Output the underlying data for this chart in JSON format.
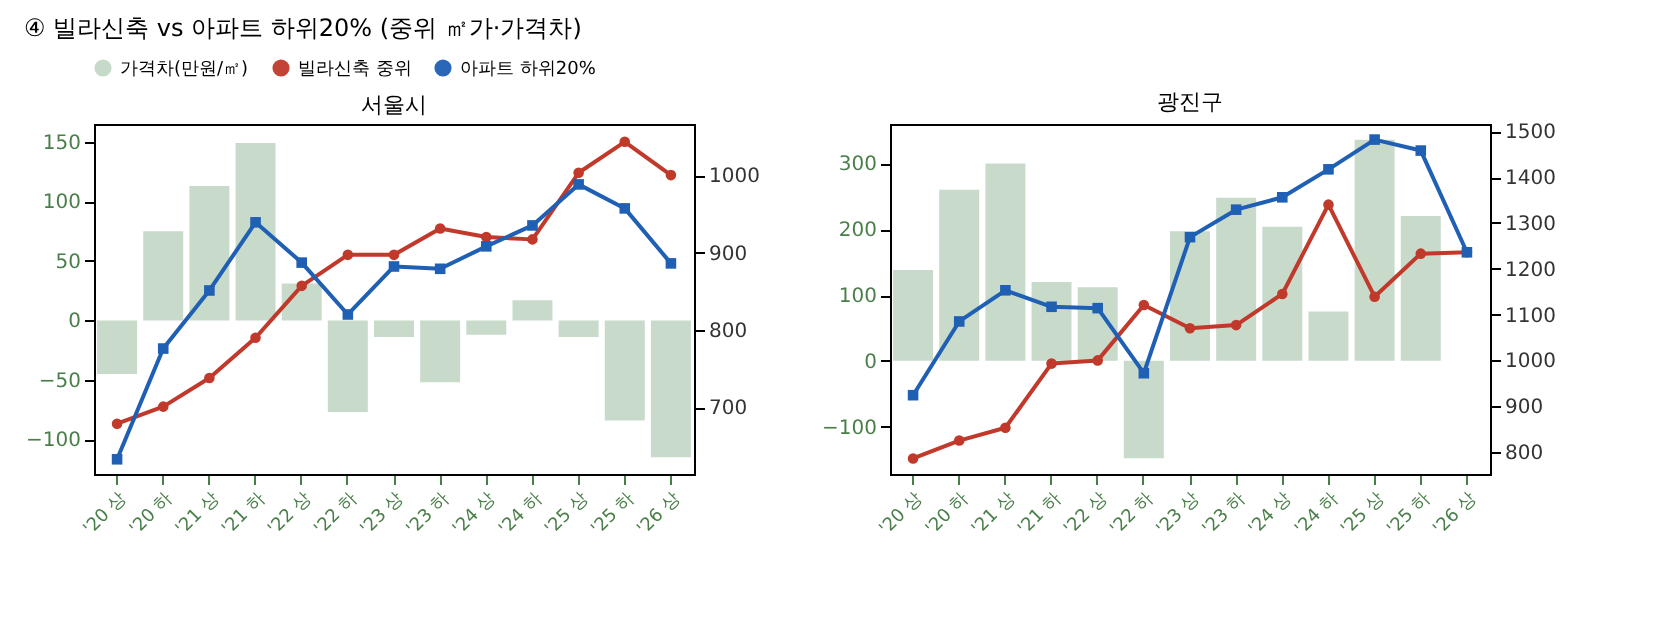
{
  "chart_data": [
    {
      "type": "bar",
      "title": "서울시",
      "annotations": [
        "④ 빌라신축 vs 아파트 하위20% (중위 ㎡가·가격차)"
      ],
      "categories": [
        "'20 상",
        "'20 하",
        "'21 상",
        "'21 하",
        "'22 상",
        "'22 하",
        "'23 상",
        "'23 하",
        "'24 상",
        "'24 하",
        "'25 상",
        "'25 하",
        "'26 상"
      ],
      "ylim": [
        -129,
        165
      ],
      "yticks": [
        -100,
        -50,
        0,
        50,
        100,
        150
      ],
      "y2lim": [
        614,
        1066
      ],
      "y2ticks": [
        700,
        800,
        900,
        1000
      ],
      "legend": "top",
      "grid": false,
      "series": [
        {
          "name": "가격차(만원/㎡)",
          "color": "#c5d9c8",
          "values": [
            -45,
            75,
            113,
            149,
            31,
            -77,
            -14,
            -52,
            -12,
            17,
            -14,
            -84,
            -115
          ]
        },
        {
          "name": "빌라신축 중위",
          "type": "line",
          "axis": "y2",
          "marker": "circle",
          "color": "#c0392b",
          "values": [
            679,
            701,
            738,
            790,
            857,
            897,
            897,
            931,
            920,
            917,
            1003,
            1043,
            1000
          ]
        },
        {
          "name": "아파트 하위20%",
          "type": "line",
          "axis": "y2",
          "marker": "square",
          "color": "#1f5fb4",
          "values": [
            633,
            776,
            851,
            939,
            887,
            820,
            882,
            879,
            908,
            935,
            988,
            957,
            886
          ]
        }
      ]
    },
    {
      "type": "bar",
      "title": "광진구",
      "categories": [
        "'20 상",
        "'20 하",
        "'21 상",
        "'21 하",
        "'22 상",
        "'22 하",
        "'23 상",
        "'23 하",
        "'24 상",
        "'24 하",
        "'25 상",
        "'25 하",
        "'26 상"
      ],
      "ylim": [
        -172,
        360
      ],
      "yticks": [
        -100,
        0,
        100,
        200,
        300
      ],
      "y2lim": [
        752,
        1516
      ],
      "y2ticks": [
        800,
        900,
        1000,
        1100,
        1200,
        1300,
        1400,
        1500
      ],
      "legend": "top",
      "grid": false,
      "series": [
        {
          "name": "가격차(만원/㎡)",
          "color": "#c5d9c8",
          "values": [
            138,
            260,
            300,
            120,
            112,
            -148,
            197,
            248,
            204,
            75,
            336,
            220,
            0
          ]
        },
        {
          "name": "빌라신축 중위",
          "type": "line",
          "axis": "y2",
          "marker": "circle",
          "color": "#c0392b",
          "values": [
            786,
            825,
            853,
            993,
            1000,
            1121,
            1070,
            1077,
            1145,
            1340,
            1139,
            1233,
            1236
          ]
        },
        {
          "name": "아파트 하위20%",
          "type": "line",
          "axis": "y2",
          "marker": "square",
          "color": "#1f5fb4",
          "values": [
            924,
            1085,
            1153,
            1117,
            1114,
            972,
            1269,
            1329,
            1356,
            1417,
            1482,
            1458,
            1236
          ]
        }
      ]
    }
  ]
}
